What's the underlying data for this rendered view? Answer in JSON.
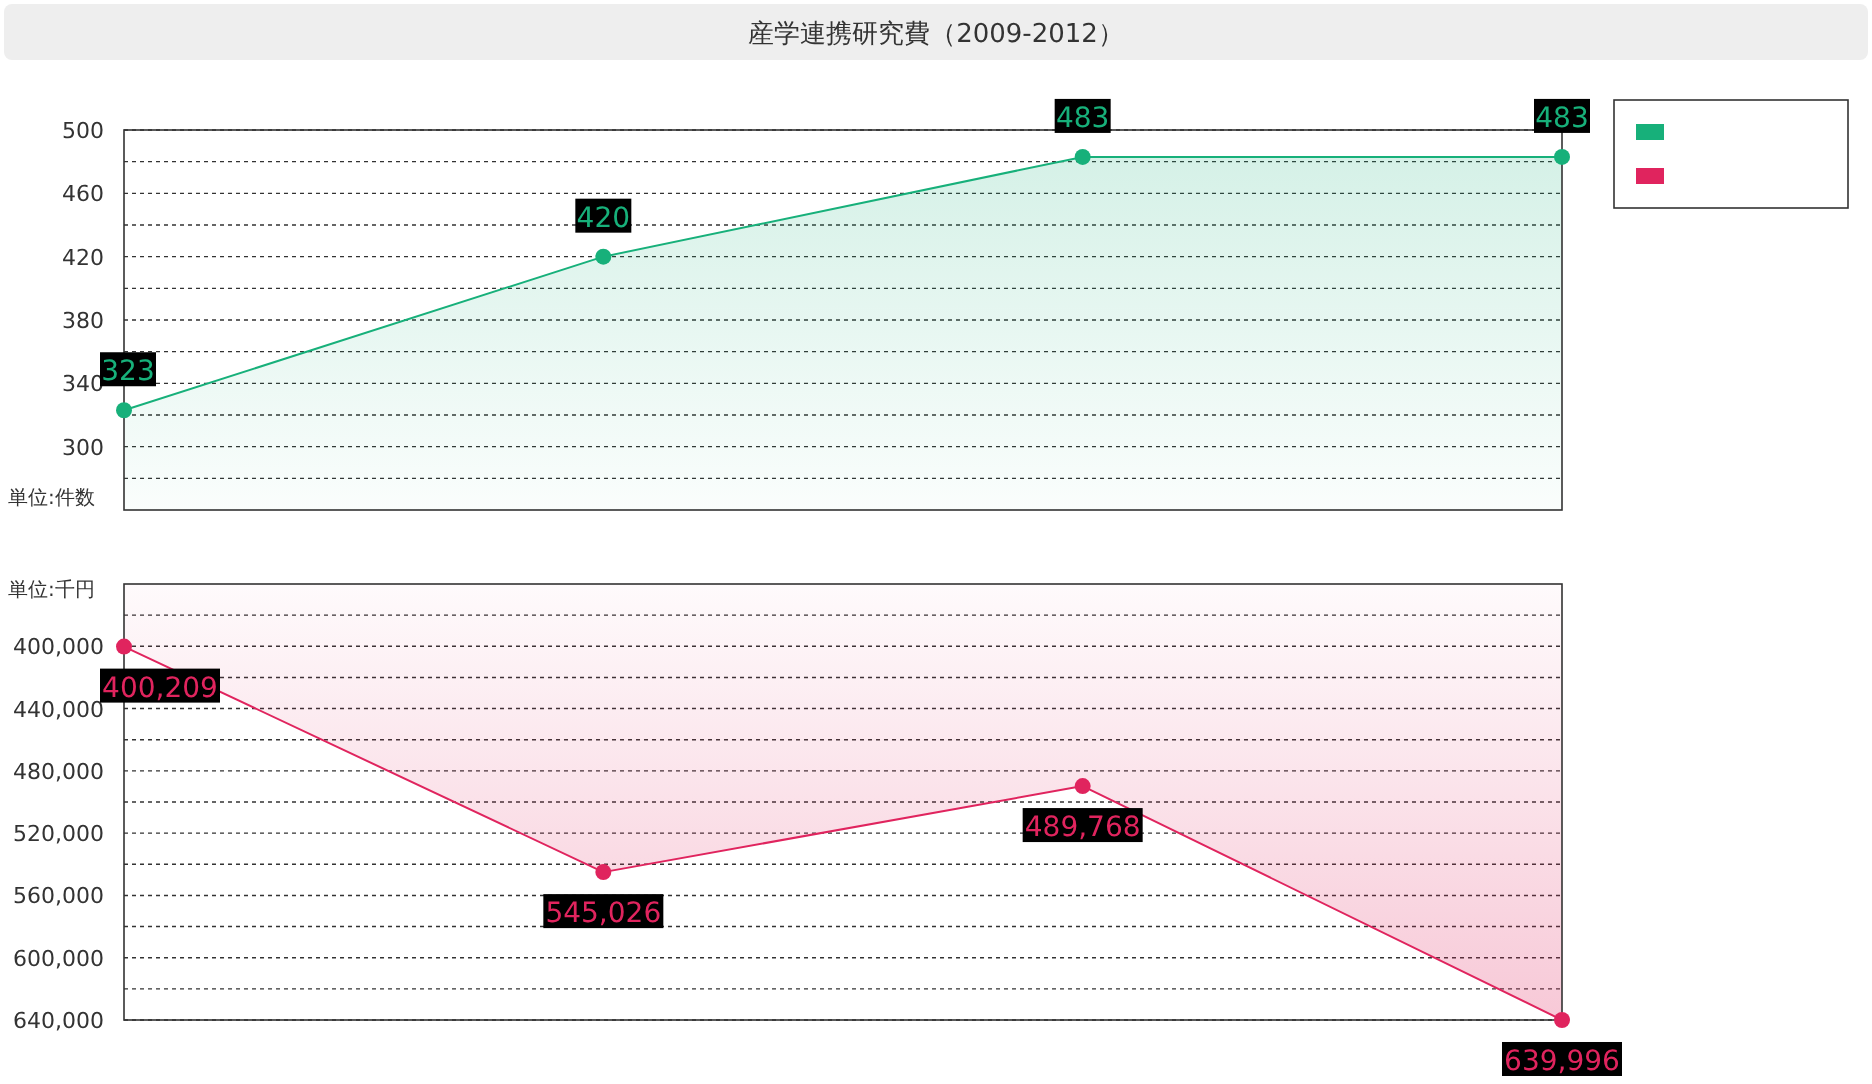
{
  "chart_data": [
    {
      "type": "area",
      "title": "産学連携研究費（2009-2012）",
      "categories": [
        null,
        null,
        null,
        null
      ],
      "series": [
        {
          "color": "#17b07a",
          "values": [
            323,
            420,
            483,
            483
          ]
        }
      ],
      "ylim": [
        260,
        500
      ],
      "yticks": [
        {
          "value": 280,
          "label": null
        },
        300,
        {
          "value": 320,
          "label": null
        },
        340,
        {
          "value": 360,
          "label": null
        },
        380,
        {
          "value": 400,
          "label": null
        },
        420,
        {
          "value": 440,
          "label": null
        },
        460,
        {
          "value": 480,
          "label": null
        },
        500
      ],
      "grid": "y",
      "marker": "circle",
      "data_labels": true,
      "tick_labels": "y",
      "annotations": [
        "単位:件数"
      ]
    },
    {
      "type": "area",
      "categories": [
        null,
        null,
        null,
        null
      ],
      "series": [
        {
          "color": "#e0245e",
          "values": [
            400209,
            545026,
            489768,
            639996
          ],
          "value_labels": [
            "400,209",
            "545,026",
            "489,768",
            "639,996"
          ]
        }
      ],
      "ylim": [
        640000,
        360000
      ],
      "yticks": [
        {
          "value": 380000,
          "label": null
        },
        {
          "value": 400000,
          "label": "400,000"
        },
        {
          "value": 420000,
          "label": null
        },
        {
          "value": 440000,
          "label": "440,000"
        },
        {
          "value": 460000,
          "label": null
        },
        {
          "value": 480000,
          "label": "480,000"
        },
        {
          "value": 500000,
          "label": null
        },
        {
          "value": 520000,
          "label": "520,000"
        },
        {
          "value": 540000,
          "label": null
        },
        {
          "value": 560000,
          "label": "560,000"
        },
        {
          "value": 580000,
          "label": null
        },
        {
          "value": 600000,
          "label": "600,000"
        },
        {
          "value": 620000,
          "label": null
        },
        {
          "value": 640000,
          "label": "640,000"
        }
      ],
      "grid": "y",
      "marker": "circle",
      "tick_labels": "y",
      "annotations": [
        "単位:千円"
      ]
    }
  ]
}
